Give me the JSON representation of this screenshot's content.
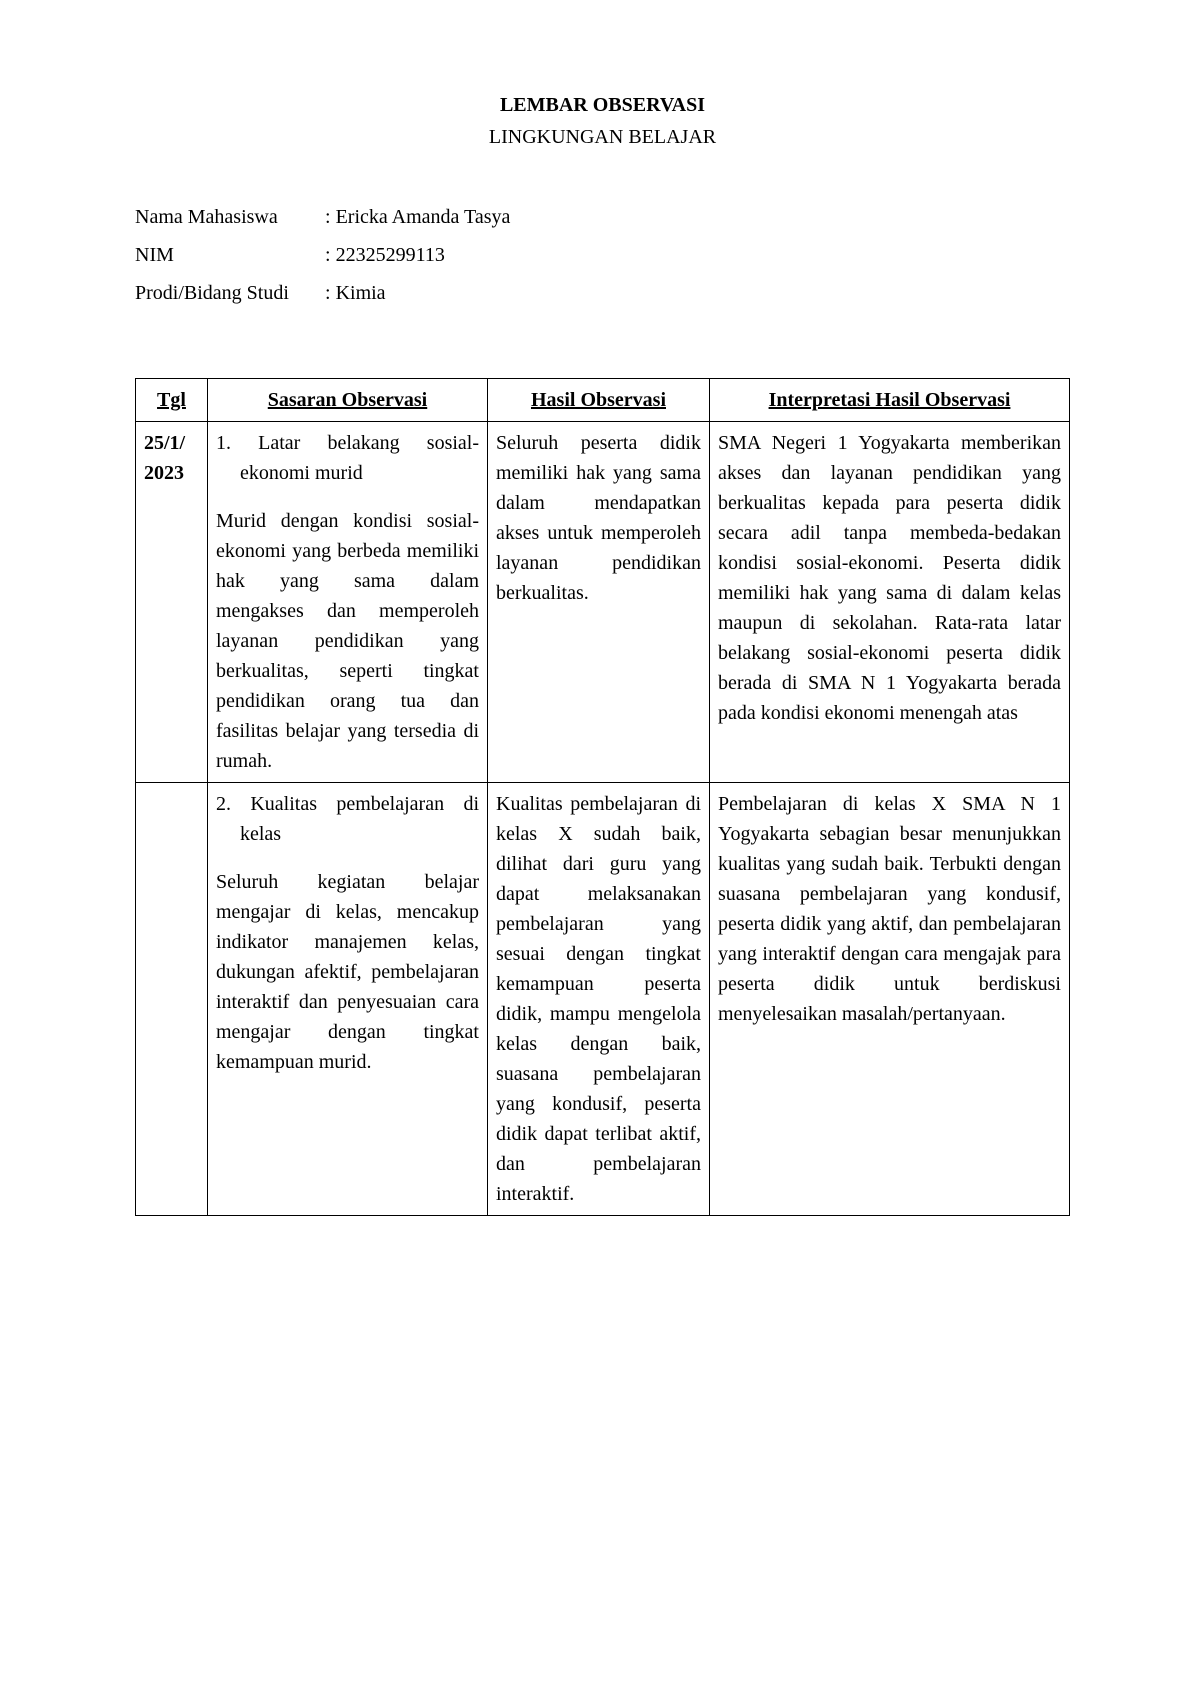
{
  "header": {
    "title": "LEMBAR OBSERVASI",
    "subtitle": "LINGKUNGAN BELAJAR"
  },
  "info": {
    "nama_label": "Nama Mahasiswa",
    "nama_value": "Ericka Amanda Tasya",
    "nim_label": "NIM",
    "nim_value": "22325299113",
    "prodi_label": "Prodi/Bidang Studi",
    "prodi_value": "Kimia"
  },
  "table": {
    "headers": {
      "tgl": "Tgl",
      "sasaran": "Sasaran Observasi",
      "hasil": "Hasil Observasi",
      "interpretasi": "Interpretasi Hasil Observasi"
    },
    "rows": [
      {
        "tgl": "25/1/\n2023",
        "sasaran_title": "1. Latar belakang sosial-ekonomi murid",
        "sasaran_desc": "Murid dengan kondisi sosial-ekonomi yang berbeda memiliki hak yang sama dalam mengakses dan memperoleh layanan pendidikan yang berkualitas, seperti tingkat pendidikan orang tua dan fasilitas belajar yang tersedia di rumah.",
        "hasil": "Seluruh peserta didik memiliki hak yang sama dalam mendapatkan akses untuk memperoleh layanan pendidikan berkualitas.",
        "interpretasi": "SMA Negeri 1 Yogyakarta memberikan akses dan layanan pendidikan yang berkualitas kepada para peserta didik secara adil tanpa membeda-bedakan kondisi sosial-ekonomi. Peserta didik memiliki hak yang sama di dalam kelas maupun di sekolahan. Rata-rata latar belakang sosial-ekonomi peserta didik berada di SMA N 1 Yogyakarta berada pada kondisi ekonomi menengah atas"
      },
      {
        "tgl": "",
        "sasaran_title": "2. Kualitas pembelajaran di kelas",
        "sasaran_desc": "Seluruh kegiatan belajar mengajar di kelas, mencakup indikator manajemen kelas, dukungan afektif, pembelajaran interaktif dan penyesuaian cara mengajar dengan tingkat kemampuan murid.",
        "hasil": "Kualitas pembelajaran di kelas X sudah baik, dilihat dari guru yang dapat melaksanakan pembelajaran yang sesuai dengan tingkat kemampuan peserta didik, mampu mengelola kelas dengan baik, suasana pembelajaran yang kondusif, peserta didik dapat terlibat aktif, dan pembelajaran interaktif.",
        "interpretasi": "Pembelajaran di kelas X SMA N 1 Yogyakarta sebagian besar menunjukkan kualitas yang sudah baik. Terbukti dengan suasana pembelajaran yang kondusif, peserta didik yang aktif, dan pembelajaran yang interaktif dengan cara mengajak para peserta didik untuk berdiskusi menyelesaikan masalah/pertanyaan."
      }
    ]
  },
  "colors": {
    "background": "#ffffff",
    "text": "#000000",
    "border": "#000000"
  }
}
